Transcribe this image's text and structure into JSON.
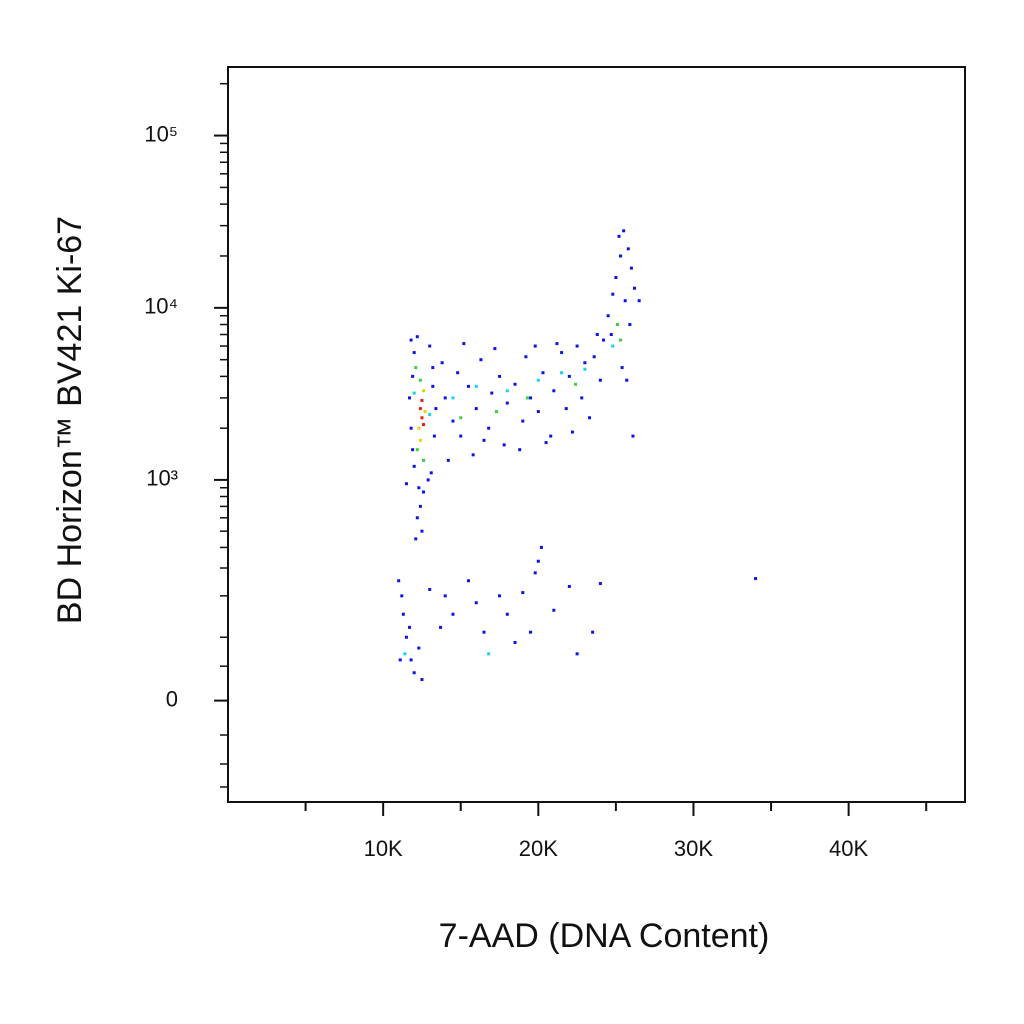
{
  "chart_data": {
    "type": "scatter",
    "xlabel": "7-AAD (DNA Content)",
    "ylabel": "BD Horizon™ BV421 Ki-67",
    "yscale": "biexponential",
    "xlim": [
      0,
      47500
    ],
    "ylim": [
      -190,
      250000
    ],
    "xticks": [
      {
        "value": 10000,
        "label": "10K"
      },
      {
        "value": 20000,
        "label": "20K"
      },
      {
        "value": 30000,
        "label": "30K"
      },
      {
        "value": 40000,
        "label": "40K"
      }
    ],
    "xminorticks": [
      5000,
      15000,
      25000,
      35000,
      45000
    ],
    "yticks": [
      {
        "value": 0,
        "label": "0"
      },
      {
        "value": 1000,
        "label": "10³"
      },
      {
        "value": 10000,
        "label": "10⁴"
      },
      {
        "value": 100000,
        "label": "10⁵"
      }
    ],
    "yminorticks": [
      -150,
      -100,
      -50,
      50,
      100,
      200,
      300,
      400,
      500,
      600,
      700,
      800,
      900,
      2000,
      3000,
      4000,
      5000,
      6000,
      7000,
      8000,
      9000,
      20000,
      30000,
      40000,
      50000,
      60000,
      70000,
      80000,
      90000,
      200000
    ],
    "series": [
      {
        "color": "#0a14e6",
        "x": [
          11800,
          12000,
          11900,
          12200,
          13000,
          13200,
          11700,
          11800,
          11900,
          12000,
          11500,
          12300,
          12600,
          12400,
          12200,
          12500,
          12100,
          13100,
          13300,
          13400,
          13200,
          12900,
          14000,
          14500,
          14800,
          15000,
          15500,
          16000,
          16300,
          16800,
          17000,
          17500,
          17800,
          18000,
          18500,
          19000,
          19200,
          19500,
          20000,
          20300,
          20800,
          21000,
          21500,
          21800,
          22000,
          22500,
          22800,
          23000,
          23300,
          23600,
          24000,
          24200,
          14200,
          15800,
          16500,
          18800,
          20500,
          22200,
          19800,
          17200,
          21200,
          23800,
          15200,
          13800,
          24500,
          24800,
          25000,
          25300,
          25500,
          25800,
          26000,
          26200,
          25600,
          24700,
          25900,
          26500,
          25200,
          26100,
          25400,
          25700,
          11000,
          11200,
          11300,
          11500,
          11800,
          11100,
          12000,
          12300,
          11700,
          13000,
          14000,
          14500,
          15500,
          16000,
          16500,
          17500,
          18000,
          18500,
          19000,
          19800,
          20000,
          20200,
          21000,
          22000,
          22500,
          23500,
          24000,
          12500,
          34000,
          13700,
          19500
        ],
        "y": [
          6500,
          5500,
          4000,
          6800,
          6000,
          4500,
          3000,
          2000,
          1500,
          1200,
          950,
          900,
          850,
          700,
          600,
          500,
          450,
          1100,
          1800,
          2600,
          3500,
          1000,
          3000,
          2200,
          4200,
          1800,
          3500,
          2600,
          5000,
          2000,
          3200,
          4000,
          1600,
          2800,
          3600,
          2200,
          5200,
          3000,
          2500,
          4200,
          1800,
          3300,
          5500,
          2600,
          4000,
          6000,
          3000,
          4800,
          2300,
          5200,
          3800,
          6500,
          1300,
          1400,
          1700,
          1500,
          1650,
          1900,
          6000,
          5800,
          6200,
          7000,
          6200,
          4800,
          9000,
          12000,
          15000,
          20000,
          28000,
          22000,
          17000,
          13000,
          11000,
          7000,
          8000,
          11000,
          26000,
          1800,
          4500,
          3800,
          250,
          200,
          150,
          100,
          60,
          60,
          40,
          80,
          120,
          220,
          200,
          150,
          250,
          180,
          110,
          200,
          150,
          90,
          210,
          280,
          330,
          400,
          160,
          230,
          70,
          110,
          240,
          30,
          258,
          120,
          110
        ]
      },
      {
        "color": "#19d2e6",
        "x": [
          12000,
          13000,
          14500,
          16000,
          18000,
          20000,
          21500,
          23000,
          24800,
          11400,
          16800
        ],
        "y": [
          3200,
          2400,
          3000,
          3500,
          3300,
          3800,
          4200,
          4400,
          6000,
          70,
          70
        ]
      },
      {
        "color": "#3cd23c",
        "x": [
          12200,
          12600,
          12400,
          12100,
          15000,
          17300,
          19300,
          22400,
          25100,
          25300
        ],
        "y": [
          1500,
          1300,
          3800,
          4500,
          2300,
          2500,
          3000,
          3600,
          8000,
          6500
        ]
      },
      {
        "color": "#e6d214",
        "x": [
          12300,
          12600,
          12400,
          12700
        ],
        "y": [
          2000,
          3300,
          1700,
          2500
        ]
      },
      {
        "color": "#e61e14",
        "x": [
          12400,
          12500,
          12600,
          12500
        ],
        "y": [
          2600,
          2300,
          2100,
          2900
        ]
      }
    ]
  }
}
